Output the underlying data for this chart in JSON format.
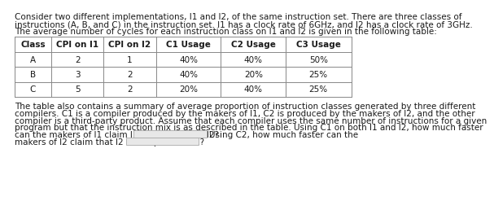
{
  "intro_text": "Consider two different implementations, I1 and I2, of the same instruction set. There are three classes of\ninstructions (A, B, and C) in the instruction set. I1 has a clock rate of 6GHz, and I2 has a clock rate of 3GHz.\nThe average number of cycles for each instruction class on I1 and I2 is given in the following table:",
  "table_headers": [
    "Class",
    "CPI on I1",
    "CPI on I2",
    "C1 Usage",
    "C2 Usage",
    "C3 Usage"
  ],
  "table_rows": [
    [
      "A",
      "2",
      "1",
      "40%",
      "40%",
      "50%"
    ],
    [
      "B",
      "3",
      "2",
      "40%",
      "20%",
      "25%"
    ],
    [
      "C",
      "5",
      "2",
      "20%",
      "40%",
      "25%"
    ]
  ],
  "body_line1": "The table also contains a summary of average proportion of instruction classes generated by three different",
  "body_line2": "compilers. C1 is a compiler produced by the makers of I1, C2 is produced by the makers of I2, and the other",
  "body_line3": "compiler is a third-party product. Assume that each compiler uses the same number of instructions for a given",
  "body_line4": "program but that the instruction mix is as described in the table. Using C1 on both I1 and I2, how much faster",
  "body_line5a": "can the makers of I1 claim I1 is compared to I2?",
  "body_line5b": "Using C2, how much faster can the",
  "body_line6": "makers of I2 claim that I2 is compared to I1?",
  "text_color": "#1a1a1a",
  "table_line_color": "#888888",
  "input_box_color": "#e8e8e8",
  "font_size": 7.5
}
